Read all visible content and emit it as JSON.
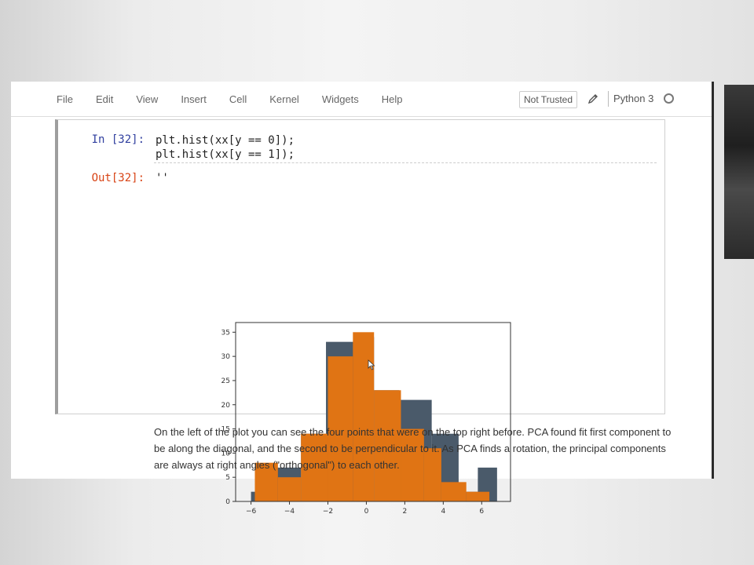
{
  "menu": {
    "items": [
      "File",
      "Edit",
      "View",
      "Insert",
      "Cell",
      "Kernel",
      "Widgets",
      "Help"
    ],
    "trust_label": "Not Trusted",
    "kernel_name": "Python 3",
    "icons": {
      "edit": "pencil-icon",
      "kernel_status": "circle-icon"
    }
  },
  "cell": {
    "in_prompt": "In [32]:",
    "code_line_1": "plt.hist(xx[y == 0]);",
    "code_line_2": "plt.hist(xx[y == 1]);",
    "out_prompt": "Out[32]:",
    "out_text": "''"
  },
  "markdown": {
    "text": "On the left of the plot you can see the four points that were on the top right before. PCA found fit first component to be along the diagonal, and the second to be perpendicular to it. As PCA finds a rotation, the principal components are always at right angles (\"orthogonal\") to each other."
  },
  "chart_data": {
    "type": "bar",
    "grid": false,
    "xlim": [
      -6.8,
      7.5
    ],
    "ylim": [
      0,
      37
    ],
    "xticks": [
      -6,
      -4,
      -2,
      0,
      2,
      4,
      6
    ],
    "yticks": [
      0,
      5,
      10,
      15,
      20,
      25,
      30,
      35
    ],
    "series": [
      {
        "color": "#4a5a6a",
        "bins": [
          {
            "x0": -6.0,
            "x1": -5.0,
            "count": 2
          },
          {
            "x0": -5.0,
            "x1": -3.4,
            "count": 7
          },
          {
            "x0": -3.4,
            "x1": -2.1,
            "count": 14
          },
          {
            "x0": -2.1,
            "x1": -0.6,
            "count": 33
          },
          {
            "x0": -0.6,
            "x1": 0.4,
            "count": 34
          },
          {
            "x0": 0.4,
            "x1": 1.7,
            "count": 23
          },
          {
            "x0": 1.7,
            "x1": 3.4,
            "count": 21
          },
          {
            "x0": 3.4,
            "x1": 4.8,
            "count": 14
          },
          {
            "x0": 4.8,
            "x1": 5.8,
            "count": 2
          },
          {
            "x0": 5.8,
            "x1": 6.8,
            "count": 7
          }
        ]
      },
      {
        "color": "#e07414",
        "bins": [
          {
            "x0": -5.8,
            "x1": -4.6,
            "count": 8
          },
          {
            "x0": -4.6,
            "x1": -3.4,
            "count": 5
          },
          {
            "x0": -3.4,
            "x1": -2.0,
            "count": 14
          },
          {
            "x0": -2.0,
            "x1": -0.7,
            "count": 30
          },
          {
            "x0": -0.7,
            "x1": 0.4,
            "count": 35
          },
          {
            "x0": 0.4,
            "x1": 1.8,
            "count": 23
          },
          {
            "x0": 1.8,
            "x1": 3.0,
            "count": 15
          },
          {
            "x0": 3.0,
            "x1": 3.9,
            "count": 11
          },
          {
            "x0": 3.9,
            "x1": 5.2,
            "count": 4
          },
          {
            "x0": 5.2,
            "x1": 6.4,
            "count": 2
          }
        ]
      }
    ]
  }
}
